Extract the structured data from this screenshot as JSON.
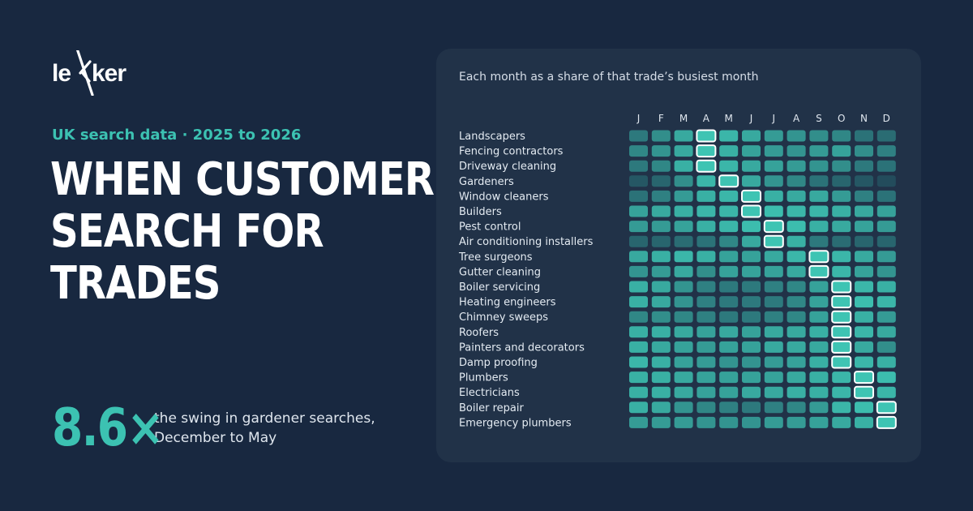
{
  "brand": {
    "logo_text": "lekker"
  },
  "kicker": "UK search data · 2025 to 2026",
  "headline": {
    "lines": [
      "WHEN CUSTOMERS",
      "SEARCH FOR",
      "TRADES"
    ]
  },
  "stat": {
    "value": "8.6×",
    "description": "the swing in gardener searches, December to May"
  },
  "chart_data": {
    "type": "heatmap",
    "title": "Each month as a share of that trade’s busiest month",
    "months": [
      "J",
      "F",
      "M",
      "A",
      "M",
      "J",
      "J",
      "A",
      "S",
      "O",
      "N",
      "D"
    ],
    "rows": [
      {
        "name": "Landscapers",
        "values": [
          0.45,
          0.6,
          0.8,
          1.0,
          0.9,
          0.8,
          0.7,
          0.65,
          0.6,
          0.55,
          0.4,
          0.35
        ],
        "peak": 3
      },
      {
        "name": "Fencing contractors",
        "values": [
          0.55,
          0.65,
          0.8,
          1.0,
          0.85,
          0.75,
          0.7,
          0.65,
          0.7,
          0.75,
          0.6,
          0.5
        ],
        "peak": 3
      },
      {
        "name": "Driveway cleaning",
        "values": [
          0.45,
          0.55,
          0.85,
          1.0,
          0.9,
          0.8,
          0.75,
          0.7,
          0.65,
          0.6,
          0.45,
          0.4
        ],
        "peak": 3
      },
      {
        "name": "Gardeners",
        "values": [
          0.2,
          0.3,
          0.6,
          0.9,
          1.0,
          0.8,
          0.65,
          0.55,
          0.4,
          0.3,
          0.2,
          0.12
        ],
        "peak": 4
      },
      {
        "name": "Window cleaners",
        "values": [
          0.4,
          0.5,
          0.7,
          0.85,
          0.9,
          1.0,
          0.85,
          0.8,
          0.8,
          0.7,
          0.5,
          0.4
        ],
        "peak": 5
      },
      {
        "name": "Builders",
        "values": [
          0.75,
          0.8,
          0.85,
          0.9,
          0.9,
          1.0,
          0.95,
          0.9,
          0.9,
          0.85,
          0.8,
          0.75
        ],
        "peak": 5
      },
      {
        "name": "Pest control",
        "values": [
          0.7,
          0.7,
          0.75,
          0.85,
          0.9,
          0.95,
          1.0,
          0.95,
          0.85,
          0.8,
          0.75,
          0.7
        ],
        "peak": 6
      },
      {
        "name": "Air conditioning installers",
        "values": [
          0.3,
          0.3,
          0.35,
          0.4,
          0.55,
          0.8,
          1.0,
          0.85,
          0.45,
          0.35,
          0.3,
          0.3
        ],
        "peak": 6
      },
      {
        "name": "Tree surgeons",
        "values": [
          0.8,
          0.85,
          0.9,
          0.85,
          0.75,
          0.75,
          0.8,
          0.9,
          1.0,
          0.9,
          0.8,
          0.7
        ],
        "peak": 8
      },
      {
        "name": "Gutter cleaning",
        "values": [
          0.65,
          0.7,
          0.8,
          0.6,
          0.75,
          0.75,
          0.75,
          0.8,
          1.0,
          0.9,
          0.75,
          0.65
        ],
        "peak": 8
      },
      {
        "name": "Boiler servicing",
        "values": [
          0.85,
          0.8,
          0.65,
          0.5,
          0.45,
          0.45,
          0.5,
          0.55,
          0.75,
          1.0,
          0.9,
          0.85
        ],
        "peak": 9
      },
      {
        "name": "Heating engineers",
        "values": [
          0.85,
          0.8,
          0.65,
          0.5,
          0.45,
          0.45,
          0.45,
          0.55,
          0.75,
          1.0,
          0.95,
          0.9
        ],
        "peak": 9
      },
      {
        "name": "Chimney sweeps",
        "values": [
          0.55,
          0.6,
          0.55,
          0.5,
          0.45,
          0.45,
          0.5,
          0.55,
          0.75,
          1.0,
          0.85,
          0.7
        ],
        "peak": 9
      },
      {
        "name": "Roofers",
        "values": [
          0.85,
          0.85,
          0.8,
          0.75,
          0.8,
          0.75,
          0.8,
          0.8,
          0.85,
          1.0,
          0.9,
          0.8
        ],
        "peak": 9
      },
      {
        "name": "Painters and decorators",
        "values": [
          0.85,
          0.8,
          0.75,
          0.7,
          0.75,
          0.75,
          0.8,
          0.8,
          0.8,
          1.0,
          0.8,
          0.6
        ],
        "peak": 9
      },
      {
        "name": "Damp proofing",
        "values": [
          0.9,
          0.85,
          0.75,
          0.7,
          0.65,
          0.65,
          0.7,
          0.75,
          0.85,
          1.0,
          0.9,
          0.85
        ],
        "peak": 9
      },
      {
        "name": "Plumbers",
        "values": [
          0.85,
          0.85,
          0.8,
          0.75,
          0.75,
          0.75,
          0.75,
          0.8,
          0.85,
          0.9,
          1.0,
          0.95
        ],
        "peak": 10
      },
      {
        "name": "Electricians",
        "values": [
          0.85,
          0.85,
          0.8,
          0.75,
          0.75,
          0.8,
          0.8,
          0.85,
          0.85,
          0.9,
          1.0,
          0.9
        ],
        "peak": 10
      },
      {
        "name": "Boiler repair",
        "values": [
          0.85,
          0.8,
          0.65,
          0.55,
          0.5,
          0.45,
          0.5,
          0.55,
          0.7,
          0.9,
          0.95,
          1.0
        ],
        "peak": 11
      },
      {
        "name": "Emergency plumbers",
        "values": [
          0.7,
          0.7,
          0.7,
          0.65,
          0.65,
          0.65,
          0.7,
          0.7,
          0.75,
          0.8,
          0.85,
          1.0
        ],
        "peak": 11
      }
    ],
    "scale": {
      "min": 0,
      "max": 1
    },
    "colors": {
      "low": "#1f3c50",
      "high": "#3ec4b3",
      "peak_outline": "#ffffff",
      "label": "#e4ebf2",
      "month_label": "#dfe6ee"
    },
    "grid": false
  }
}
